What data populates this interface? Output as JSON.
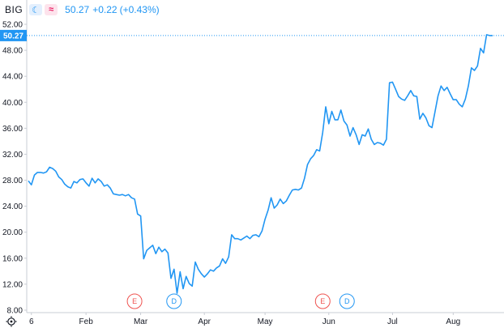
{
  "legend": {
    "symbol": "BIG",
    "last": "50.27",
    "change": "+0.22",
    "change_pct": "(+0.43%)",
    "buttons": [
      {
        "name": "moon-icon",
        "glyph": "☾"
      },
      {
        "name": "compare-icon",
        "glyph": "≈"
      }
    ]
  },
  "colors": {
    "line": "#2196f3",
    "earnings": "#ef5350",
    "dividend": "#2196f3",
    "axis": "#c9cdd4",
    "text": "#131722"
  },
  "settings_icon": "gear-icon",
  "chart_data": {
    "type": "line",
    "title": "",
    "xlabel": "",
    "ylabel": "",
    "ylim": [
      7,
      53
    ],
    "yticks": [
      8,
      12,
      16,
      20,
      24,
      28,
      32,
      36,
      40,
      44,
      48,
      52
    ],
    "ytick_labels": [
      "8.00",
      "12.00",
      "16.00",
      "20.00",
      "24.00",
      "28.00",
      "32.00",
      "36.00",
      "40.00",
      "44.00",
      "48.00",
      "52.00"
    ],
    "xlim": [
      0,
      147
    ],
    "xticks": [
      {
        "label": "6",
        "index": 1
      },
      {
        "label": "Feb",
        "index": 19
      },
      {
        "label": "Mar",
        "index": 37
      },
      {
        "label": "Apr",
        "index": 58
      },
      {
        "label": "May",
        "index": 78
      },
      {
        "label": "Jun",
        "index": 99
      },
      {
        "label": "Jul",
        "index": 120
      },
      {
        "label": "Aug",
        "index": 140
      }
    ],
    "last_value": 50.27,
    "last_value_label": "50.27",
    "grid": false,
    "legend_position": "top-left",
    "markers": [
      {
        "type": "earnings",
        "label": "E",
        "index": 35
      },
      {
        "type": "dividend",
        "label": "D",
        "index": 48
      },
      {
        "type": "earnings",
        "label": "E",
        "index": 97
      },
      {
        "type": "dividend",
        "label": "D",
        "index": 105
      }
    ],
    "series": [
      {
        "values": [
          27.9,
          27.3,
          28.8,
          29.2,
          29.2,
          29.1,
          29.3,
          30.0,
          29.8,
          29.4,
          28.5,
          28.1,
          27.4,
          27.0,
          26.8,
          27.8,
          27.6,
          28.1,
          28.2,
          27.6,
          27.1,
          28.3,
          27.6,
          28.2,
          27.8,
          27.1,
          27.3,
          26.8,
          25.9,
          25.8,
          25.7,
          25.8,
          25.6,
          25.8,
          25.3,
          25.1,
          22.8,
          22.5,
          15.9,
          17.2,
          17.6,
          18.0,
          16.7,
          17.7,
          17.0,
          17.4,
          16.8,
          12.9,
          14.3,
          10.6,
          13.9,
          11.3,
          13.2,
          12.1,
          11.7,
          15.4,
          14.3,
          13.6,
          13.1,
          13.6,
          14.2,
          14.0,
          14.5,
          14.8,
          15.9,
          15.2,
          16.2,
          19.6,
          19.0,
          19.0,
          18.8,
          19.1,
          19.4,
          19.0,
          19.5,
          19.6,
          19.3,
          20.2,
          22.0,
          23.4,
          25.3,
          23.7,
          24.2,
          25.1,
          24.4,
          24.8,
          25.7,
          26.5,
          26.6,
          26.5,
          26.8,
          28.3,
          30.4,
          31.3,
          31.8,
          32.7,
          32.5,
          35.4,
          39.3,
          36.7,
          38.6,
          37.3,
          37.3,
          38.8,
          37.1,
          36.5,
          34.8,
          36.1,
          35.0,
          33.5,
          35.0,
          34.8,
          35.9,
          34.3,
          33.5,
          33.8,
          33.7,
          33.4,
          34.3,
          43.0,
          43.1,
          42.0,
          40.9,
          40.5,
          40.3,
          41.0,
          41.8,
          41.0,
          40.9,
          37.4,
          38.3,
          37.6,
          36.4,
          36.1,
          38.5,
          41.0,
          42.5,
          41.8,
          42.3,
          41.3,
          40.4,
          40.4,
          39.7,
          39.3,
          40.5,
          42.5,
          45.3,
          44.9,
          45.6,
          48.3,
          47.6,
          50.4,
          50.27,
          50.27
        ]
      }
    ]
  }
}
